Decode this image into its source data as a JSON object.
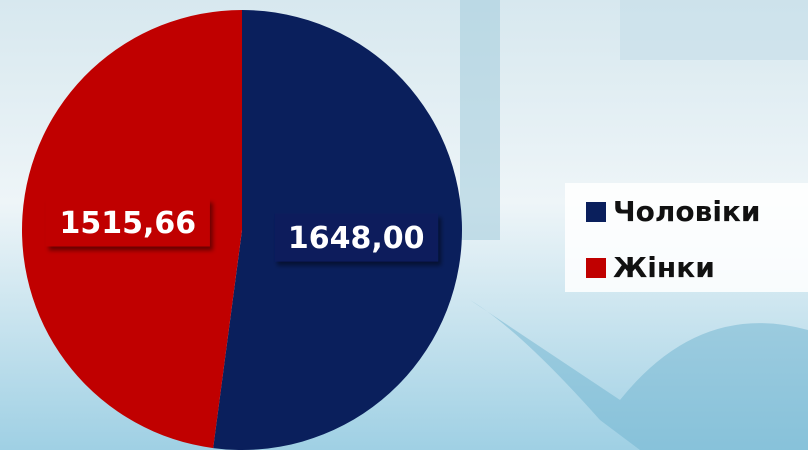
{
  "chart_data": {
    "type": "pie",
    "categories": [
      "Чоловіки",
      "Жінки"
    ],
    "values": [
      1648.0,
      1515.66
    ],
    "value_labels": [
      "1648,00",
      "1515,66"
    ],
    "colors": [
      "#0a1f5c",
      "#c00000"
    ],
    "legend": "right"
  }
}
